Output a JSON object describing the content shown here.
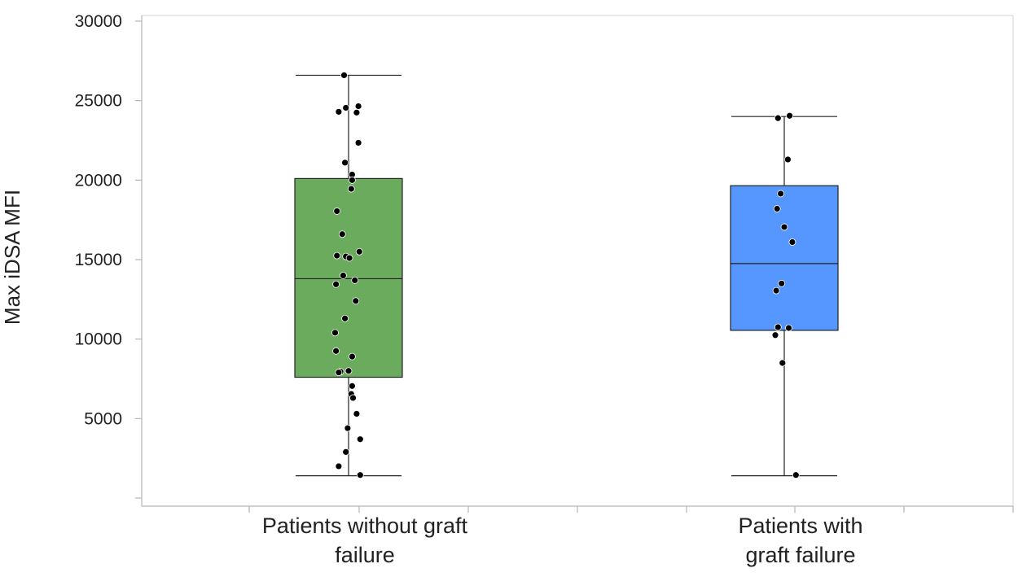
{
  "chart_data": {
    "type": "box",
    "title": "",
    "xlabel": "",
    "ylabel": "Max iDSA MFI",
    "ylim": [
      -500,
      30000
    ],
    "yticks": [
      0,
      5000,
      10000,
      15000,
      20000,
      25000,
      30000
    ],
    "ytick_labels": [
      "",
      "5000",
      "10000",
      "15000",
      "20000",
      "25000",
      "30000"
    ],
    "grid": false,
    "legend": "none",
    "categories": [
      {
        "label_lines": [
          "Patients without graft",
          "failure"
        ],
        "color": "#6aab5e",
        "stats": {
          "min": 1400,
          "q1": 7600,
          "median": 13800,
          "q3": 20100,
          "max": 26600
        },
        "points": [
          [
            -0.05,
            26600
          ],
          [
            -0.11,
            24300
          ],
          [
            -0.03,
            24550
          ],
          [
            0.11,
            24650
          ],
          [
            0.09,
            24250
          ],
          [
            0.11,
            22350
          ],
          [
            -0.04,
            21100
          ],
          [
            0.04,
            20350
          ],
          [
            0.04,
            20000
          ],
          [
            0.03,
            19450
          ],
          [
            -0.13,
            18050
          ],
          [
            -0.07,
            16600
          ],
          [
            0.12,
            15500
          ],
          [
            -0.13,
            15250
          ],
          [
            -0.03,
            15200
          ],
          [
            0.01,
            15100
          ],
          [
            -0.06,
            14000
          ],
          [
            0.07,
            13700
          ],
          [
            -0.14,
            13450
          ],
          [
            0.08,
            12400
          ],
          [
            -0.04,
            11300
          ],
          [
            -0.15,
            10400
          ],
          [
            -0.14,
            9250
          ],
          [
            0.04,
            8900
          ],
          [
            -0.09,
            7950
          ],
          [
            -0.11,
            7900
          ],
          [
            0.0,
            8000
          ],
          [
            0.04,
            7050
          ],
          [
            0.03,
            6550
          ],
          [
            0.05,
            6300
          ],
          [
            0.09,
            5300
          ],
          [
            -0.01,
            4400
          ],
          [
            0.13,
            3700
          ],
          [
            -0.03,
            2900
          ],
          [
            -0.11,
            2000
          ],
          [
            0.13,
            1450
          ]
        ]
      },
      {
        "label_lines": [
          "Patients with",
          "graft failure"
        ],
        "color": "#5697ff",
        "stats": {
          "min": 1400,
          "q1": 10550,
          "median": 14750,
          "q3": 19650,
          "max": 24000
        },
        "points": [
          [
            -0.07,
            23900
          ],
          [
            0.06,
            24050
          ],
          [
            0.04,
            21300
          ],
          [
            -0.04,
            19150
          ],
          [
            -0.08,
            18200
          ],
          [
            0.0,
            17050
          ],
          [
            0.09,
            16100
          ],
          [
            -0.03,
            13500
          ],
          [
            -0.09,
            13050
          ],
          [
            -0.07,
            10750
          ],
          [
            0.05,
            10700
          ],
          [
            -0.1,
            10250
          ],
          [
            -0.02,
            8500
          ],
          [
            0.13,
            1450
          ]
        ]
      }
    ]
  }
}
